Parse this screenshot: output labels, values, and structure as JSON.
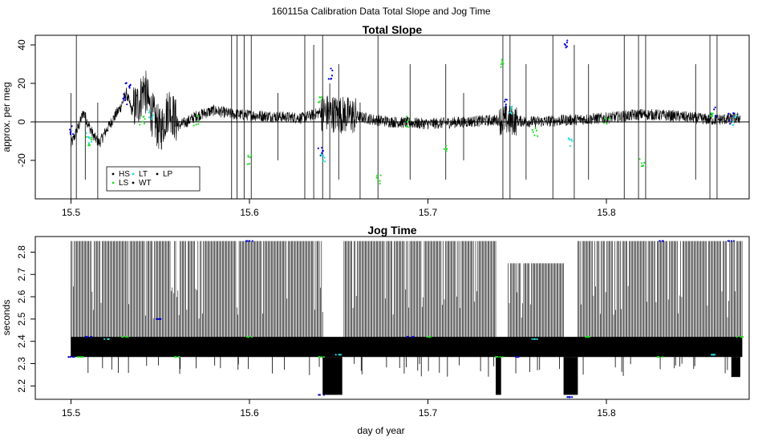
{
  "page": {
    "title": "160115a   Calibration Data Total Slope and Jog Time",
    "xlabel": "day of year"
  },
  "colors": {
    "black": "#000000",
    "blue": "#0000cc",
    "green": "#22dd22",
    "cyan": "#22dddd",
    "axis": "#000000",
    "background": "#ffffff"
  },
  "chart_data": [
    {
      "type": "line",
      "title": "Total Slope",
      "xlabel": "",
      "ylabel": "approx. per meg",
      "xlim": [
        15.48,
        15.88
      ],
      "ylim": [
        -40,
        45
      ],
      "x_ticks": [
        15.5,
        15.6,
        15.7,
        15.8
      ],
      "x_tick_labels": [
        "15.5",
        "15.6",
        "15.7",
        "15.8"
      ],
      "y_ticks": [
        -20,
        0,
        20,
        40
      ],
      "y_tick_labels": [
        "-20",
        "0",
        "20",
        "40"
      ],
      "reference_line": 0,
      "legend": {
        "position": "bottom-left",
        "entries": [
          {
            "label": "HS",
            "color": "#000000"
          },
          {
            "label": "LT",
            "color": "#22dddd"
          },
          {
            "label": "LP",
            "color": "#000000"
          },
          {
            "label": "LS",
            "color": "#22dd22"
          },
          {
            "label": "WT",
            "color": "#000000"
          }
        ]
      },
      "baseline": [
        [
          15.5,
          -12
        ],
        [
          15.504,
          -3
        ],
        [
          15.507,
          5
        ],
        [
          15.51,
          -2
        ],
        [
          15.513,
          -8
        ],
        [
          15.516,
          -11
        ],
        [
          15.52,
          -4
        ],
        [
          15.524,
          2
        ],
        [
          15.528,
          8
        ],
        [
          15.531,
          15
        ],
        [
          15.534,
          6
        ],
        [
          15.538,
          10
        ],
        [
          15.541,
          18
        ],
        [
          15.545,
          5
        ],
        [
          15.55,
          -5
        ],
        [
          15.555,
          8
        ],
        [
          15.56,
          -2
        ],
        [
          15.565,
          0
        ],
        [
          15.57,
          3
        ],
        [
          15.58,
          6
        ],
        [
          15.59,
          4
        ],
        [
          15.61,
          3
        ],
        [
          15.63,
          2
        ],
        [
          15.64,
          5
        ],
        [
          15.65,
          4
        ],
        [
          15.66,
          3
        ],
        [
          15.67,
          1
        ],
        [
          15.68,
          0
        ],
        [
          15.7,
          -1
        ],
        [
          15.72,
          0
        ],
        [
          15.74,
          1
        ],
        [
          15.76,
          0
        ],
        [
          15.78,
          1
        ],
        [
          15.8,
          2
        ],
        [
          15.82,
          4
        ],
        [
          15.84,
          3
        ],
        [
          15.86,
          1
        ],
        [
          15.875,
          2
        ]
      ],
      "spikes": [
        [
          15.5,
          -45,
          15
        ],
        [
          15.503,
          -45,
          45
        ],
        [
          15.508,
          -30,
          5
        ],
        [
          15.515,
          -45,
          10
        ],
        [
          15.59,
          -45,
          45
        ],
        [
          15.593,
          -45,
          45
        ],
        [
          15.597,
          -45,
          45
        ],
        [
          15.601,
          -45,
          45
        ],
        [
          15.616,
          -20,
          15
        ],
        [
          15.631,
          -45,
          45
        ],
        [
          15.636,
          -40,
          40
        ],
        [
          15.641,
          -45,
          45
        ],
        [
          15.645,
          -40,
          20
        ],
        [
          15.65,
          -30,
          30
        ],
        [
          15.662,
          -45,
          10
        ],
        [
          15.672,
          -45,
          45
        ],
        [
          15.69,
          -30,
          30
        ],
        [
          15.71,
          -30,
          30
        ],
        [
          15.72,
          -20,
          15
        ],
        [
          15.742,
          -45,
          45
        ],
        [
          15.746,
          -45,
          45
        ],
        [
          15.755,
          -30,
          30
        ],
        [
          15.77,
          -45,
          45
        ],
        [
          15.782,
          -40,
          40
        ],
        [
          15.79,
          -30,
          30
        ],
        [
          15.81,
          -45,
          45
        ],
        [
          15.818,
          -45,
          45
        ],
        [
          15.822,
          -45,
          45
        ],
        [
          15.85,
          -30,
          30
        ],
        [
          15.858,
          -45,
          45
        ],
        [
          15.862,
          -45,
          45
        ]
      ],
      "colored_points": [
        {
          "color": "#0000cc",
          "x": [
            15.5,
            15.53,
            15.532,
            15.64,
            15.645,
            15.744,
            15.778,
            15.86,
            15.87
          ],
          "y": [
            -5,
            12,
            18,
            -15,
            25,
            10,
            40,
            5,
            2
          ]
        },
        {
          "color": "#22dd22",
          "x": [
            15.51,
            15.54,
            15.57,
            15.6,
            15.64,
            15.672,
            15.688,
            15.71,
            15.742,
            15.76,
            15.8,
            15.82,
            15.86
          ],
          "y": [
            -10,
            0,
            1,
            -20,
            10,
            -30,
            0,
            -15,
            30,
            -5,
            2,
            -20,
            3
          ]
        },
        {
          "color": "#22dddd",
          "x": [
            15.51,
            15.545,
            15.641,
            15.747,
            15.78,
            15.872
          ],
          "y": [
            -8,
            3,
            -20,
            5,
            -10,
            1
          ]
        }
      ]
    },
    {
      "type": "line",
      "title": "Jog Time",
      "xlabel": "day of year",
      "ylabel": "seconds",
      "xlim": [
        15.48,
        15.88
      ],
      "ylim": [
        2.14,
        2.87
      ],
      "x_ticks": [
        15.5,
        15.6,
        15.7,
        15.8
      ],
      "x_tick_labels": [
        "15.5",
        "15.6",
        "15.7",
        "15.8"
      ],
      "y_ticks": [
        2.2,
        2.3,
        2.4,
        2.5,
        2.6,
        2.7,
        2.8
      ],
      "y_tick_labels": [
        "2.2",
        "2.3",
        "2.4",
        "2.5",
        "2.6",
        "2.7",
        "2.8"
      ],
      "band": {
        "low": 2.33,
        "high": 2.42
      },
      "oscillation_segments": [
        {
          "x0": 15.5,
          "x1": 15.641,
          "high": 2.85
        },
        {
          "x0": 15.653,
          "x1": 15.738,
          "high": 2.85
        },
        {
          "x0": 15.745,
          "x1": 15.776,
          "high": 2.75
        },
        {
          "x0": 15.784,
          "x1": 15.876,
          "high": 2.85
        }
      ],
      "low_blocks": [
        {
          "x0": 15.641,
          "x1": 15.652,
          "low": 2.16
        },
        {
          "x0": 15.738,
          "x1": 15.741,
          "low": 2.16
        },
        {
          "x0": 15.776,
          "x1": 15.784,
          "low": 2.16
        },
        {
          "x0": 15.87,
          "x1": 15.875,
          "low": 2.24
        }
      ],
      "colored_points": [
        {
          "color": "#0000cc",
          "x": [
            15.5,
            15.51,
            15.55,
            15.6,
            15.64,
            15.69,
            15.75,
            15.78,
            15.83,
            15.87
          ],
          "y": [
            2.33,
            2.42,
            2.5,
            2.85,
            2.16,
            2.42,
            2.33,
            2.15,
            2.85,
            2.85
          ]
        },
        {
          "color": "#22dd22",
          "x": [
            15.505,
            15.53,
            15.56,
            15.6,
            15.64,
            15.7,
            15.74,
            15.79,
            15.83,
            15.875
          ],
          "y": [
            2.33,
            2.42,
            2.33,
            2.42,
            2.33,
            2.42,
            2.33,
            2.42,
            2.33,
            2.42
          ]
        },
        {
          "color": "#22dddd",
          "x": [
            15.52,
            15.65,
            15.76,
            15.86
          ],
          "y": [
            2.41,
            2.34,
            2.41,
            2.34
          ]
        }
      ]
    }
  ]
}
